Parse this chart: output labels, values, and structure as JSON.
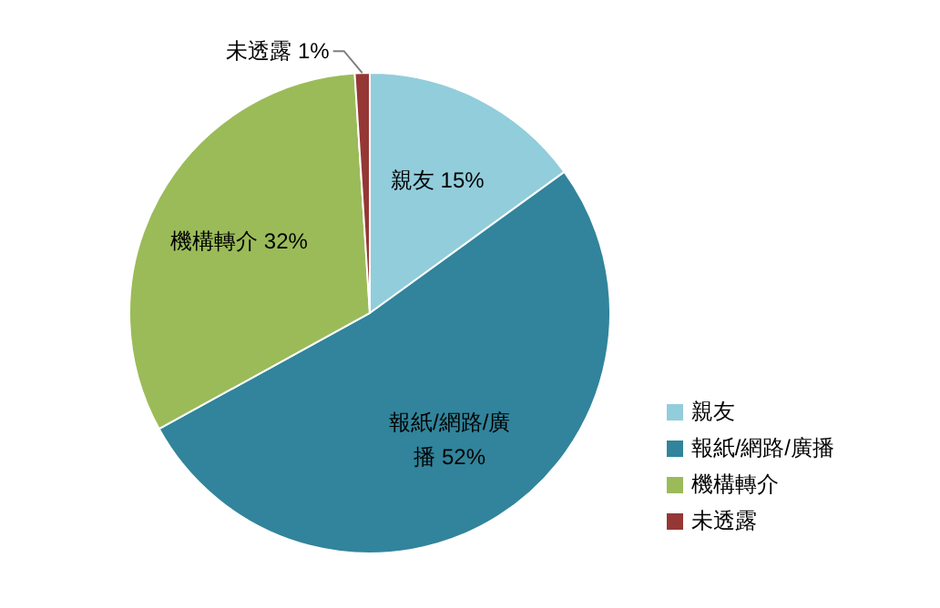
{
  "chart_data": {
    "type": "pie",
    "categories": [
      "親友",
      "報紙/網路/廣播",
      "機構轉介",
      "未透露"
    ],
    "values": [
      15,
      52,
      32,
      1
    ],
    "value_labels": [
      "親友 15%",
      "報紙/網路/廣播 52%",
      "機構轉介 32%",
      "未透露 1%"
    ],
    "colors": [
      "#92cddc",
      "#31849b",
      "#9bbb59",
      "#953735"
    ],
    "legend": "right"
  }
}
